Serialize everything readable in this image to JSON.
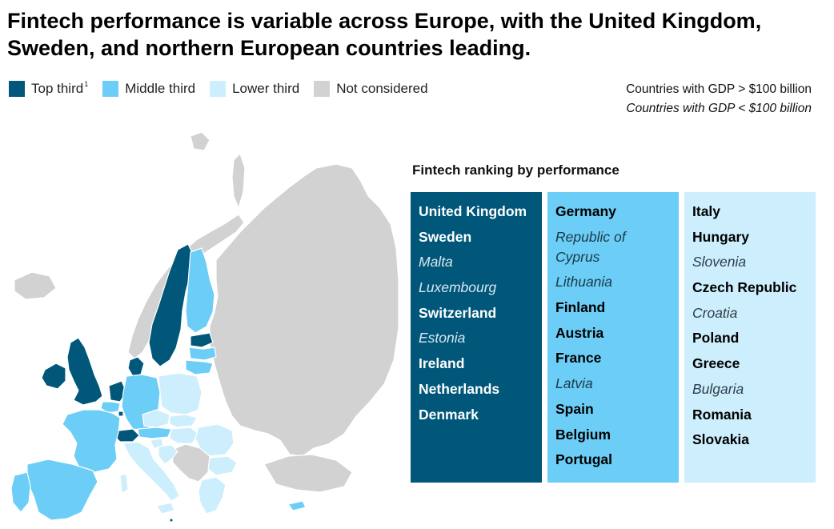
{
  "title": "Fintech performance is variable across Europe, with the United Kingdom, Sweden, and northern European countries leading.",
  "legend": {
    "items": [
      {
        "label": "Top third",
        "sup": "1",
        "color": "#00577a"
      },
      {
        "label": "Middle third",
        "sup": "",
        "color": "#6ccdf6"
      },
      {
        "label": "Lower third",
        "sup": "",
        "color": "#cdeefc"
      },
      {
        "label": "Not considered",
        "sup": "",
        "color": "#d2d2d2"
      }
    ]
  },
  "gdp_note": {
    "large": "Countries with GDP > $100 billion",
    "small": "Countries with GDP < $100 billion"
  },
  "ranking": {
    "title": "Fintech ranking by performance",
    "columns": [
      {
        "tier": "Top third",
        "color": "#00577a",
        "countries": [
          {
            "name": "United Kingdom",
            "gdp": "large"
          },
          {
            "name": "Sweden",
            "gdp": "large"
          },
          {
            "name": "Malta",
            "gdp": "small"
          },
          {
            "name": "Luxembourg",
            "gdp": "small"
          },
          {
            "name": "Switzerland",
            "gdp": "large"
          },
          {
            "name": "Estonia",
            "gdp": "small"
          },
          {
            "name": "Ireland",
            "gdp": "large"
          },
          {
            "name": "Netherlands",
            "gdp": "large"
          },
          {
            "name": "Denmark",
            "gdp": "large"
          }
        ]
      },
      {
        "tier": "Middle third",
        "color": "#6ccdf6",
        "countries": [
          {
            "name": "Germany",
            "gdp": "large"
          },
          {
            "name": "Republic of Cyprus",
            "gdp": "small"
          },
          {
            "name": "Lithuania",
            "gdp": "small"
          },
          {
            "name": "Finland",
            "gdp": "large"
          },
          {
            "name": "Austria",
            "gdp": "large"
          },
          {
            "name": "France",
            "gdp": "large"
          },
          {
            "name": "Latvia",
            "gdp": "small"
          },
          {
            "name": "Spain",
            "gdp": "large"
          },
          {
            "name": "Belgium",
            "gdp": "large"
          },
          {
            "name": "Portugal",
            "gdp": "large"
          }
        ]
      },
      {
        "tier": "Lower third",
        "color": "#cdeefc",
        "countries": [
          {
            "name": "Italy",
            "gdp": "large"
          },
          {
            "name": "Hungary",
            "gdp": "large"
          },
          {
            "name": "Slovenia",
            "gdp": "small"
          },
          {
            "name": "Czech Republic",
            "gdp": "large"
          },
          {
            "name": "Croatia",
            "gdp": "small"
          },
          {
            "name": "Poland",
            "gdp": "large"
          },
          {
            "name": "Greece",
            "gdp": "large"
          },
          {
            "name": "Bulgaria",
            "gdp": "small"
          },
          {
            "name": "Romania",
            "gdp": "large"
          },
          {
            "name": "Slovakia",
            "gdp": "large"
          }
        ]
      }
    ]
  },
  "map": {
    "colors": {
      "top": "#00577a",
      "middle": "#6ccdf6",
      "lower": "#cdeefc",
      "none": "#d2d2d2",
      "border": "#ffffff"
    }
  }
}
